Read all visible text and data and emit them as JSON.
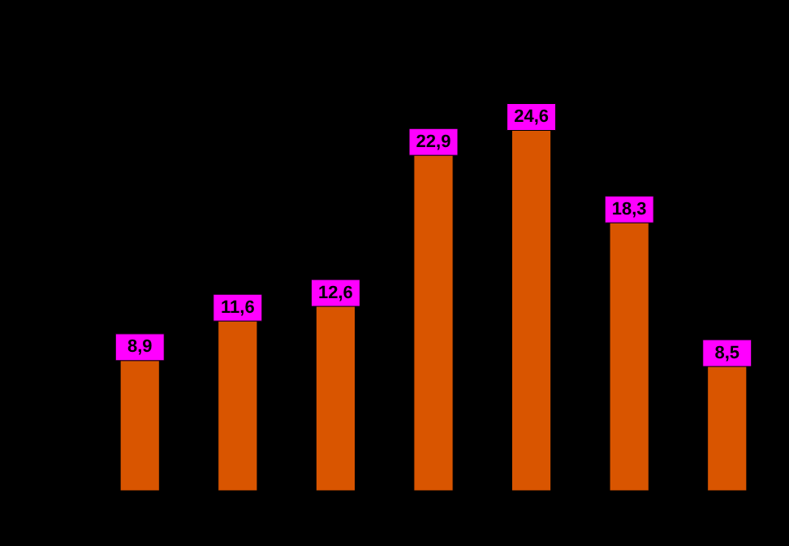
{
  "chart_data": {
    "type": "bar",
    "categories": [
      null,
      null,
      null,
      null,
      null,
      null,
      null
    ],
    "values": [
      8.9,
      11.6,
      12.6,
      22.9,
      24.6,
      18.3,
      8.5
    ],
    "value_labels": [
      "8,9",
      "11,6",
      "12,6",
      "22,9",
      "24,6",
      "18,3",
      "8,5"
    ],
    "color": "#d95500"
  }
}
